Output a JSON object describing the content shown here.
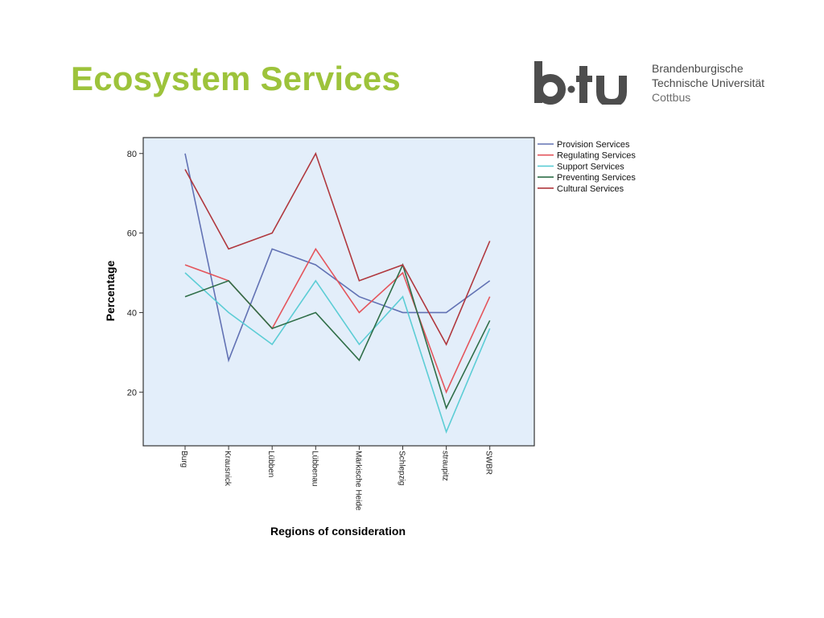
{
  "slide": {
    "title": "Ecosystem Services"
  },
  "logo": {
    "name": "btu-logo",
    "line1": "Brandenburgische",
    "line2": "Technische Universität",
    "line3": "Cottbus",
    "color": "#4d4d4d"
  },
  "chart_data": {
    "type": "line",
    "title": "",
    "xlabel": "Regions of consideration",
    "ylabel": "Percentage",
    "categories": [
      "Burg",
      "Krausnick",
      "Lübben",
      "Lübbenau",
      "Märkische Heide",
      "Schlepzig",
      "straupitz",
      "SWBR"
    ],
    "ylim": [
      6.5,
      84
    ],
    "yticks": [
      20,
      40,
      60,
      80
    ],
    "grid": false,
    "plot_background": "#e3eefa",
    "legend_position": "right",
    "series": [
      {
        "name": "Provision Services",
        "color": "#6272b4",
        "values": [
          80,
          28,
          56,
          52,
          44,
          40,
          40,
          48
        ]
      },
      {
        "name": "Regulating Services",
        "color": "#e4555c",
        "values": [
          52,
          48,
          36,
          56,
          40,
          50,
          20,
          44
        ]
      },
      {
        "name": "Support Services",
        "color": "#5ccdd5",
        "values": [
          50,
          40,
          32,
          48,
          32,
          44,
          10,
          36
        ]
      },
      {
        "name": "Preventing Services",
        "color": "#2f6e48",
        "values": [
          44,
          48,
          36,
          40,
          28,
          52,
          16,
          38
        ]
      },
      {
        "name": "Cultural Services",
        "color": "#b0383e",
        "values": [
          76,
          56,
          60,
          80,
          48,
          52,
          32,
          58
        ]
      }
    ]
  }
}
